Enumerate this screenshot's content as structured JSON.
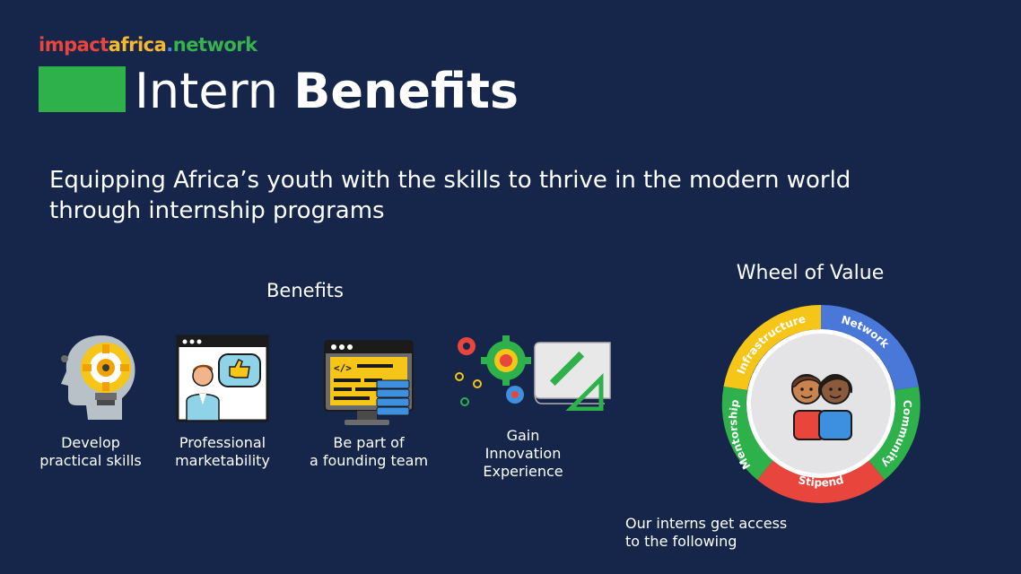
{
  "logo": {
    "part1": "impact",
    "part2": "africa",
    "part3": ".",
    "part4": "network"
  },
  "title": {
    "light": "Intern ",
    "bold": "Benefits"
  },
  "subtitle": "Equipping Africa’s youth with the skills to thrive in the modern world through internship programs",
  "benefits": {
    "heading": "Benefits",
    "items": [
      {
        "icon": "lightbulb-head-icon",
        "line1": "Develop",
        "line2": "practical skills",
        "line3": ""
      },
      {
        "icon": "presentation-thumbs-up-icon",
        "line1": "Professional",
        "line2": "marketability",
        "line3": ""
      },
      {
        "icon": "code-monitor-icon",
        "line1": "Be part of",
        "line2": "a founding team",
        "line3": ""
      },
      {
        "icon": "gears-blueprint-icon",
        "line1": "Gain",
        "line2": "Innovation",
        "line3": "Experience"
      }
    ]
  },
  "wheel": {
    "heading": "Wheel of Value",
    "segments": [
      {
        "label": "Infrastructure",
        "color": "#f5c518"
      },
      {
        "label": "Network",
        "color": "#4a78d8"
      },
      {
        "label": "Community",
        "color": "#2eb04b"
      },
      {
        "label": "Stipend",
        "color": "#e8463c"
      },
      {
        "label": "Mentorship",
        "color": "#2eb04b"
      }
    ],
    "center_icon": "two-people-icon",
    "caption_line1": "Our interns get access",
    "caption_line2": "to the following"
  },
  "colors": {
    "background": "#15264a",
    "accent_green": "#2eb04b",
    "text": "#ffffff"
  }
}
